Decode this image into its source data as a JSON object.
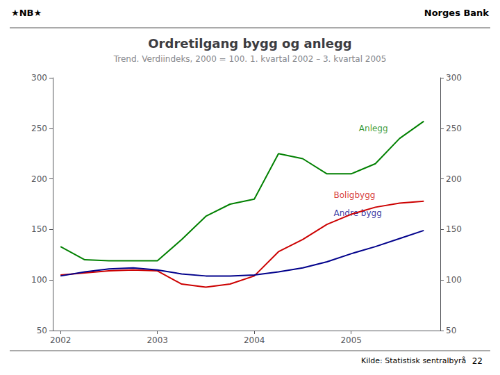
{
  "chart_data": {
    "type": "line",
    "logo": "★NB★",
    "header": "Norges Bank",
    "title": "Ordretilgang bygg og anlegg",
    "subtitle": "Trend. Verdiindeks, 2000 = 100. 1. kvartal 2002 – 3. kvartal 2005",
    "footer": "Kilde: Statistisk sentralbyrå",
    "page": "22",
    "x": [
      2002.0,
      2002.25,
      2002.5,
      2002.75,
      2003.0,
      2003.25,
      2003.5,
      2003.75,
      2004.0,
      2004.25,
      2004.5,
      2004.75,
      2005.0,
      2005.25,
      2005.5,
      2005.75
    ],
    "series": [
      {
        "name": "Anlegg",
        "color": "#008000",
        "values": [
          133,
          120,
          119,
          119,
          119,
          140,
          163,
          175,
          180,
          225,
          220,
          205,
          205,
          215,
          240,
          257
        ]
      },
      {
        "name": "Boligbygg",
        "color": "#cc0000",
        "values": [
          105,
          107,
          109,
          110,
          109,
          96,
          93,
          96,
          104,
          128,
          140,
          155,
          165,
          172,
          176,
          178
        ]
      },
      {
        "name": "Andre bygg",
        "color": "#00008b",
        "values": [
          104,
          108,
          111,
          112,
          110,
          106,
          104,
          104,
          105,
          108,
          112,
          118,
          126,
          133,
          141,
          149
        ]
      }
    ],
    "xlim": [
      2001.92,
      2005.92
    ],
    "xticks": [
      2002,
      2003,
      2004,
      2005
    ],
    "ylim": [
      50,
      300
    ],
    "yticks": [
      50,
      100,
      150,
      200,
      250,
      300
    ],
    "y2lim": [
      50,
      300
    ],
    "y2ticks": [
      50,
      100,
      150,
      200,
      250,
      300
    ],
    "grid": false,
    "annotations": [
      {
        "text": "Anlegg",
        "x": 2005.08,
        "y": 250,
        "color": "#008000"
      },
      {
        "text": "Boligbygg",
        "x": 2004.82,
        "y": 184,
        "color": "#cc0000"
      },
      {
        "text": "Andre bygg",
        "x": 2004.82,
        "y": 166,
        "color": "#00008b"
      }
    ]
  }
}
